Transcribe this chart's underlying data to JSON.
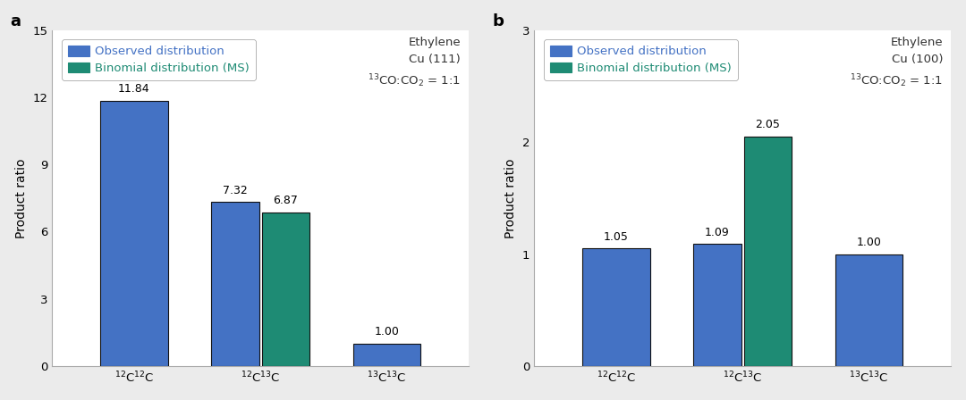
{
  "panel_a": {
    "label": "a",
    "categories": [
      "$^{12}$C$^{12}$C",
      "$^{12}$C$^{13}$C",
      "$^{13}$C$^{13}$C"
    ],
    "observed": [
      11.84,
      7.32,
      1.0
    ],
    "binomial": [
      null,
      6.87,
      null
    ],
    "ylim": [
      0,
      15
    ],
    "yticks": [
      0,
      3,
      6,
      9,
      12,
      15
    ],
    "ylabel": "Product ratio",
    "annotation_line1": "Ethylene",
    "annotation_line2": "Cu (111)",
    "annotation_line3": "$^{13}$CO:CO$_2$ = 1:1",
    "bar_color_observed": "#4472C4",
    "bar_color_binomial": "#1E8B74",
    "bar_width": 0.38,
    "legend_observed": "Observed distribution",
    "legend_binomial": "Binomial distribution (MS)"
  },
  "panel_b": {
    "label": "b",
    "categories": [
      "$^{12}$C$^{12}$C",
      "$^{12}$C$^{13}$C",
      "$^{13}$C$^{13}$C"
    ],
    "observed": [
      1.05,
      1.09,
      1.0
    ],
    "binomial": [
      null,
      2.05,
      null
    ],
    "ylim": [
      0,
      3
    ],
    "yticks": [
      0,
      1,
      2,
      3
    ],
    "ylabel": "Product ratio",
    "annotation_line1": "Ethylene",
    "annotation_line2": "Cu (100)",
    "annotation_line3": "$^{13}$CO:CO$_2$ = 1:1",
    "bar_color_observed": "#4472C4",
    "bar_color_binomial": "#1E8B74",
    "bar_width": 0.38,
    "legend_observed": "Observed distribution",
    "legend_binomial": "Binomial distribution (MS)"
  },
  "background_color": "#ebebeb",
  "axes_background": "#ffffff",
  "label_color_observed": "#4472C4",
  "label_color_binomial": "#1E8B74",
  "legend_fontsize": 9.5,
  "bar_edgecolor": "#111111",
  "value_fontsize": 9,
  "tick_fontsize": 9.5,
  "ylabel_fontsize": 10,
  "panel_label_fontsize": 13
}
